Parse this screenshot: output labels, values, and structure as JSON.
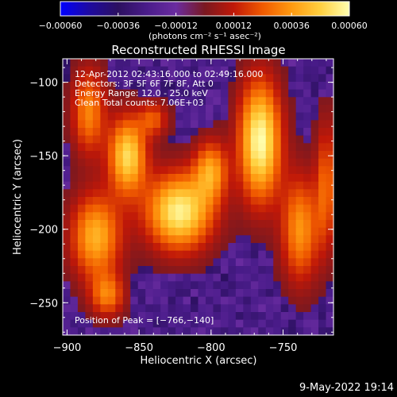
{
  "chart_data": {
    "type": "heatmap",
    "title": "Reconstructed RHESSI Image",
    "xlabel": "Heliocentric X (arcsec)",
    "ylabel": "Heliocentric Y (arcsec)",
    "x_ticks": [
      -900,
      -850,
      -800,
      -750
    ],
    "y_ticks": [
      -100,
      -150,
      -200,
      -250
    ],
    "x_tick_labels": [
      "−900",
      "−850",
      "−800",
      "−750"
    ],
    "y_tick_labels": [
      "−100",
      "−150",
      "−200",
      "−250"
    ],
    "xlim": [
      -903,
      -715
    ],
    "ylim": [
      -272,
      -84
    ],
    "colorbar": {
      "min": -0.0006,
      "max": 0.0006,
      "ticks": [
        -0.0006,
        -0.00036,
        -0.00012,
        0.00012,
        0.00036,
        0.0006
      ],
      "tick_labels": [
        "−0.00060",
        "−0.00036",
        "−0.00012",
        "0.00012",
        "0.00036",
        "0.00060"
      ],
      "unit_label": "(photons cm⁻² s⁻¹ asec⁻²)",
      "colors": [
        "#0000ff",
        "#1e0aa0",
        "#2c1060",
        "#4a1c8a",
        "#6a2ca0",
        "#7a1820",
        "#c01808",
        "#f05a00",
        "#ff9a10",
        "#ffd040",
        "#ffffb0"
      ]
    },
    "annotations": [
      "12-Apr-2012 02:43:16.000 to 02:49:16.000",
      "Detectors: 3F 5F 6F 7F 8F, Att 0",
      "Energy Range: 12.0 - 25.0 keV",
      "Clean     Total counts: 7.06E+03"
    ],
    "peak_label": "Position of Peak = [−766,−140]",
    "peak": {
      "x": -766,
      "y": -140
    },
    "sources": [
      {
        "x": -766,
        "y": -140,
        "sx": 10,
        "sy": 28,
        "amp": 1.0
      },
      {
        "x": -822,
        "y": -188,
        "sx": 16,
        "sy": 18,
        "amp": 0.95
      },
      {
        "x": -858,
        "y": -150,
        "sx": 9,
        "sy": 18,
        "amp": 0.85
      },
      {
        "x": -800,
        "y": -160,
        "sx": 8,
        "sy": 14,
        "amp": 0.6
      },
      {
        "x": -880,
        "y": -205,
        "sx": 12,
        "sy": 20,
        "amp": 0.7
      },
      {
        "x": -885,
        "y": -120,
        "sx": 8,
        "sy": 20,
        "amp": 0.55
      },
      {
        "x": -738,
        "y": -200,
        "sx": 9,
        "sy": 25,
        "amp": 0.6
      },
      {
        "x": -872,
        "y": -245,
        "sx": 8,
        "sy": 10,
        "amp": 0.5
      },
      {
        "x": -720,
        "y": -170,
        "sx": 5,
        "sy": 30,
        "amp": 0.45
      },
      {
        "x": -840,
        "y": -125,
        "sx": 7,
        "sy": 8,
        "amp": 0.4
      }
    ],
    "footer_date": "9-May-2022 19:14"
  }
}
